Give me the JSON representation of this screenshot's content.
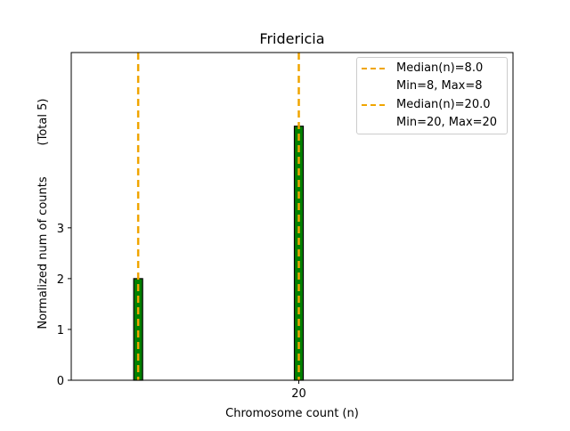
{
  "chart_data": {
    "type": "bar",
    "title": "Fridericia",
    "xlabel": "Chromosome count (n)",
    "ylabel_main": "Normalized num of counts",
    "ylabel_total": "(Total 5)",
    "x_ticks": [
      20
    ],
    "x_tick_labels": [
      "20"
    ],
    "y_ticks": [
      0,
      1,
      2,
      3
    ],
    "y_tick_labels": [
      "0",
      "1",
      "2",
      "3"
    ],
    "xlim": [
      3,
      36
    ],
    "ylim": [
      0,
      6.45
    ],
    "bars": [
      {
        "x": 8,
        "value": 2
      },
      {
        "x": 20,
        "value": 5
      }
    ],
    "baseline_segments": [
      [
        3,
        12
      ]
    ],
    "bar_color": "#008000",
    "bar_edge_color": "#000000",
    "median_lines": [
      {
        "x": 8,
        "color": "#f0a500"
      },
      {
        "x": 20,
        "color": "#f0a500"
      }
    ],
    "legend": [
      {
        "label": "Median(n)=8.0",
        "sub": "Min=8, Max=8"
      },
      {
        "label": "Median(n)=20.0",
        "sub": "Min=20, Max=20"
      }
    ],
    "legend_placement": "top-right",
    "grid": false
  }
}
